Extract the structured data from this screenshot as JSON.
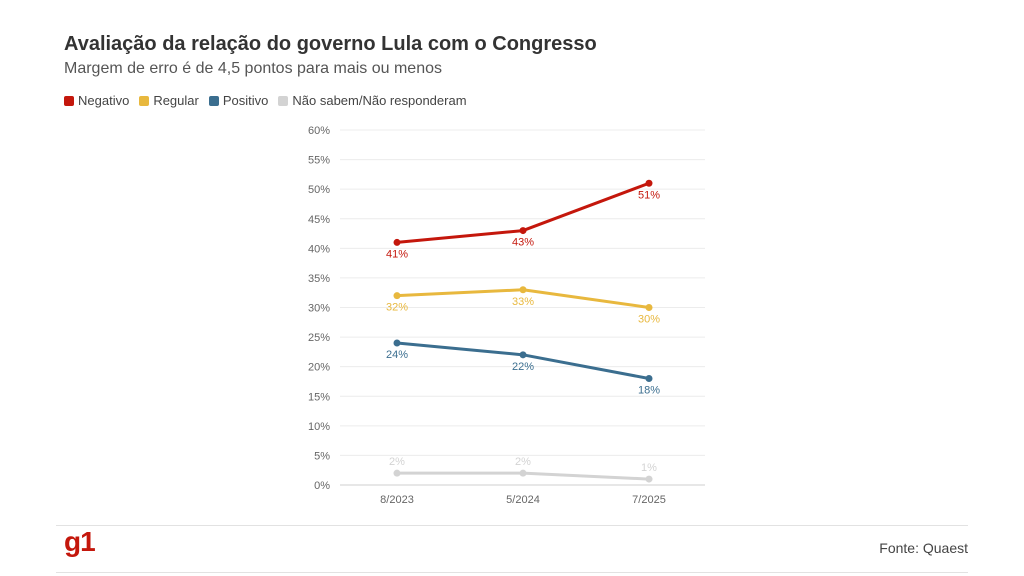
{
  "title": "Avaliação da relação do governo Lula com o Congresso",
  "subtitle": "Margem de erro é de 4,5 pontos para mais ou menos",
  "source": "Fonte: Quaest",
  "logo_text": "g1",
  "chart_data": {
    "type": "line",
    "x": [
      "8/2023",
      "5/2024",
      "7/2025"
    ],
    "ylim": [
      0,
      60
    ],
    "yticks": [
      "0%",
      "5%",
      "10%",
      "15%",
      "20%",
      "25%",
      "30%",
      "35%",
      "40%",
      "45%",
      "50%",
      "55%",
      "60%"
    ],
    "grid": true,
    "legend_placement": "top-left",
    "series": [
      {
        "name": "Negativo",
        "color": "#c4170c",
        "values": [
          41,
          43,
          51
        ],
        "labels": [
          "41%",
          "43%",
          "51%"
        ],
        "label_position": [
          "below",
          "below",
          "below"
        ]
      },
      {
        "name": "Regular",
        "color": "#e8b83e",
        "values": [
          32,
          33,
          30
        ],
        "labels": [
          "32%",
          "33%",
          "30%"
        ],
        "label_position": [
          "below",
          "below",
          "below"
        ]
      },
      {
        "name": "Positivo",
        "color": "#3b6e8f",
        "values": [
          24,
          22,
          18
        ],
        "labels": [
          "24%",
          "22%",
          "18%"
        ],
        "label_position": [
          "below",
          "below",
          "below"
        ]
      },
      {
        "name": "Não sabem/Não responderam",
        "color": "#d3d3d3",
        "values": [
          2,
          2,
          1
        ],
        "labels": [
          "2%",
          "2%",
          "1%"
        ],
        "label_position": [
          "above",
          "above",
          "above"
        ]
      }
    ]
  }
}
